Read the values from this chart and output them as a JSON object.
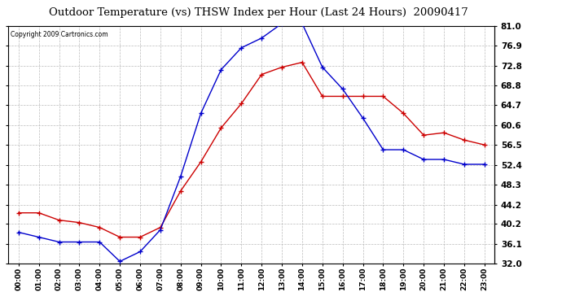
{
  "title": "Outdoor Temperature (vs) THSW Index per Hour (Last 24 Hours)  20090417",
  "copyright": "Copyright 2009 Cartronics.com",
  "hours": [
    "00:00",
    "01:00",
    "02:00",
    "03:00",
    "04:00",
    "05:00",
    "06:00",
    "07:00",
    "08:00",
    "09:00",
    "10:00",
    "11:00",
    "12:00",
    "13:00",
    "14:00",
    "15:00",
    "16:00",
    "17:00",
    "18:00",
    "19:00",
    "20:00",
    "21:00",
    "22:00",
    "23:00"
  ],
  "temp": [
    42.5,
    42.5,
    41.0,
    40.5,
    39.5,
    37.5,
    37.5,
    39.5,
    47.0,
    53.0,
    60.0,
    65.0,
    71.0,
    72.5,
    73.5,
    66.5,
    66.5,
    66.5,
    66.5,
    63.0,
    58.5,
    59.0,
    57.5,
    56.5
  ],
  "thsw": [
    38.5,
    37.5,
    36.5,
    36.5,
    36.5,
    32.5,
    34.5,
    39.0,
    50.0,
    63.0,
    72.0,
    76.5,
    78.5,
    81.5,
    81.5,
    72.5,
    68.0,
    62.0,
    55.5,
    55.5,
    53.5,
    53.5,
    52.5,
    52.5
  ],
  "temp_color": "#cc0000",
  "thsw_color": "#0000cc",
  "bg_color": "#ffffff",
  "grid_color": "#bbbbbb",
  "yticks": [
    32.0,
    36.1,
    40.2,
    44.2,
    48.3,
    52.4,
    56.5,
    60.6,
    64.7,
    68.8,
    72.8,
    76.9,
    81.0
  ],
  "ymin": 32.0,
  "ymax": 81.0
}
